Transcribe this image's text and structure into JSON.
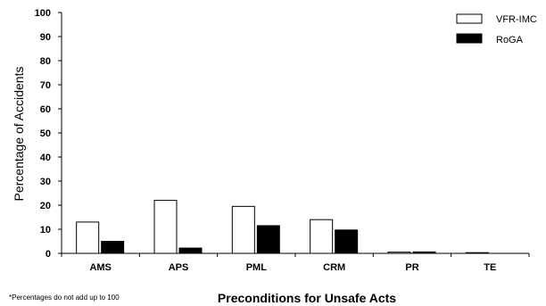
{
  "chart_data": {
    "type": "bar",
    "categories": [
      "AMS",
      "APS",
      "PML",
      "CRM",
      "PR",
      "TE"
    ],
    "series": [
      {
        "name": "VFR-IMC",
        "color": "#ffffff",
        "values": [
          13,
          22,
          19.5,
          14,
          0.5,
          0.3
        ]
      },
      {
        "name": "RoGA",
        "color": "#000000",
        "values": [
          5,
          2.2,
          11.5,
          9.7,
          0.6,
          0
        ]
      }
    ],
    "xlabel": "Preconditions for Unsafe Acts",
    "ylabel": "Percentage of Accidents",
    "ylim": [
      0,
      100
    ],
    "yticks": [
      0,
      10,
      20,
      30,
      40,
      50,
      60,
      70,
      80,
      90,
      100
    ],
    "grid": false,
    "legend": "top-right",
    "footnote": "*Percentages do not add up to 100"
  }
}
